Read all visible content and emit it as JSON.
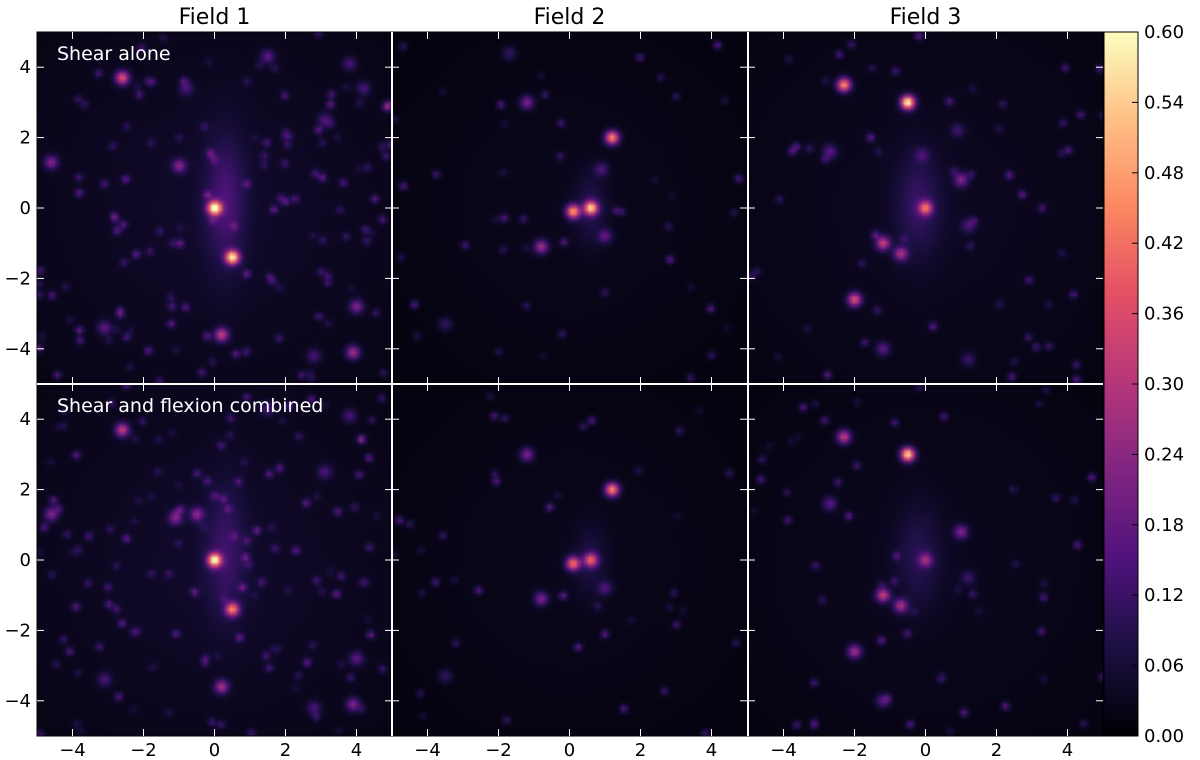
{
  "chart_data": {
    "type": "heatmap",
    "grid": {
      "rows": 2,
      "cols": 3
    },
    "column_titles": [
      "Field 1",
      "Field 2",
      "Field 3"
    ],
    "row_labels": [
      "Shear alone",
      "Shear and flexion combined"
    ],
    "xlim": [
      -5,
      5
    ],
    "ylim": [
      -5,
      5
    ],
    "x_ticks": [
      -4,
      -2,
      0,
      2,
      4
    ],
    "y_ticks": [
      -4,
      -2,
      0,
      2,
      4
    ],
    "colormap": "magma",
    "colorbar": {
      "min": 0.0,
      "max": 0.6,
      "ticks": [
        "0.00",
        "0.06",
        "0.12",
        "0.18",
        "0.24",
        "0.30",
        "0.36",
        "0.42",
        "0.48",
        "0.54",
        "0.60"
      ]
    },
    "panels": [
      {
        "row": 0,
        "col": 0,
        "label": "Shear alone",
        "background": 0.05,
        "halos": [
          [
            0.3,
            0.2,
            0.55,
            1.8,
            0.1
          ]
        ],
        "peaks": [
          [
            0,
            0,
            0.6
          ],
          [
            0.5,
            -1.4,
            0.55
          ],
          [
            -2.6,
            3.7,
            0.35
          ],
          [
            -4.6,
            1.3,
            0.2
          ],
          [
            0.2,
            -3.6,
            0.3
          ],
          [
            4.0,
            -2.8,
            0.2
          ],
          [
            3.9,
            -4.1,
            0.25
          ],
          [
            -1.0,
            1.2,
            0.2
          ],
          [
            1.5,
            4.3,
            0.15
          ],
          [
            3.1,
            2.5,
            0.12
          ],
          [
            -3.1,
            -3.4,
            0.15
          ],
          [
            2.8,
            -4.2,
            0.12
          ],
          [
            3.8,
            4.1,
            0.12
          ],
          [
            -0.8,
            3.4,
            0.12
          ],
          [
            4.2,
            3.4,
            0.12
          ]
        ],
        "speckle": 130
      },
      {
        "row": 0,
        "col": 1,
        "label": "",
        "background": 0.03,
        "halos": [
          [
            0.6,
            0.0,
            0.45,
            1.0,
            0.06
          ]
        ],
        "peaks": [
          [
            0.1,
            -0.1,
            0.45
          ],
          [
            0.6,
            0.0,
            0.5
          ],
          [
            1.2,
            2.0,
            0.45
          ],
          [
            -1.2,
            3.0,
            0.2
          ],
          [
            -0.8,
            -1.1,
            0.25
          ],
          [
            1.0,
            -0.8,
            0.15
          ],
          [
            -3.5,
            -3.3,
            0.1
          ],
          [
            0.9,
            1.1,
            0.12
          ],
          [
            -1.7,
            4.4,
            0.1
          ]
        ],
        "speckle": 45
      },
      {
        "row": 0,
        "col": 2,
        "label": "",
        "background": 0.04,
        "halos": [
          [
            -0.2,
            0.1,
            0.6,
            1.4,
            0.08
          ]
        ],
        "peaks": [
          [
            -2.3,
            3.5,
            0.45
          ],
          [
            -0.5,
            3.0,
            0.6
          ],
          [
            0.0,
            0.0,
            0.35
          ],
          [
            -1.2,
            -1.0,
            0.3
          ],
          [
            -2.0,
            -2.6,
            0.35
          ],
          [
            -0.7,
            -1.3,
            0.25
          ],
          [
            1.0,
            0.8,
            0.2
          ],
          [
            -2.7,
            1.6,
            0.15
          ],
          [
            -1.2,
            -4.0,
            0.15
          ],
          [
            1.2,
            -0.5,
            0.12
          ],
          [
            -0.1,
            1.5,
            0.1
          ],
          [
            1.2,
            -4.3,
            0.1
          ],
          [
            0.9,
            2.2,
            0.1
          ]
        ],
        "speckle": 55
      },
      {
        "row": 1,
        "col": 0,
        "label": "Shear and flexion combined",
        "background": 0.05,
        "halos": [
          [
            0.3,
            0.2,
            0.55,
            1.8,
            0.08
          ]
        ],
        "peaks": [
          [
            0,
            0,
            0.55
          ],
          [
            0.5,
            -1.4,
            0.4
          ],
          [
            -2.6,
            3.7,
            0.3
          ],
          [
            -4.6,
            1.3,
            0.2
          ],
          [
            0.2,
            -3.6,
            0.25
          ],
          [
            4.0,
            -2.8,
            0.15
          ],
          [
            3.9,
            -4.1,
            0.2
          ],
          [
            -1.1,
            1.2,
            0.2
          ],
          [
            -0.5,
            1.3,
            0.2
          ],
          [
            1.5,
            4.3,
            0.12
          ],
          [
            3.1,
            2.5,
            0.12
          ],
          [
            -3.1,
            -3.4,
            0.12
          ],
          [
            2.8,
            -4.2,
            0.12
          ],
          [
            3.8,
            4.1,
            0.12
          ]
        ],
        "speckle": 130
      },
      {
        "row": 1,
        "col": 1,
        "label": "",
        "background": 0.03,
        "halos": [
          [
            0.6,
            0.0,
            0.45,
            1.0,
            0.05
          ]
        ],
        "peaks": [
          [
            0.1,
            -0.1,
            0.4
          ],
          [
            0.6,
            0.0,
            0.35
          ],
          [
            1.2,
            2.0,
            0.45
          ],
          [
            -1.2,
            3.0,
            0.2
          ],
          [
            -0.8,
            -1.1,
            0.2
          ],
          [
            1.0,
            -0.8,
            0.12
          ],
          [
            -3.5,
            -3.3,
            0.1
          ]
        ],
        "speckle": 40
      },
      {
        "row": 1,
        "col": 2,
        "label": "",
        "background": 0.035,
        "halos": [
          [
            -0.2,
            0.1,
            0.6,
            1.4,
            0.06
          ]
        ],
        "peaks": [
          [
            -2.3,
            3.5,
            0.3
          ],
          [
            -0.5,
            3.0,
            0.55
          ],
          [
            0.0,
            0.0,
            0.2
          ],
          [
            -1.2,
            -1.0,
            0.3
          ],
          [
            -2.0,
            -2.6,
            0.25
          ],
          [
            -0.7,
            -1.3,
            0.25
          ],
          [
            1.0,
            0.8,
            0.2
          ],
          [
            -2.7,
            1.6,
            0.15
          ],
          [
            -1.2,
            -4.0,
            0.15
          ],
          [
            1.2,
            -0.5,
            0.1
          ]
        ],
        "speckle": 55
      }
    ]
  }
}
